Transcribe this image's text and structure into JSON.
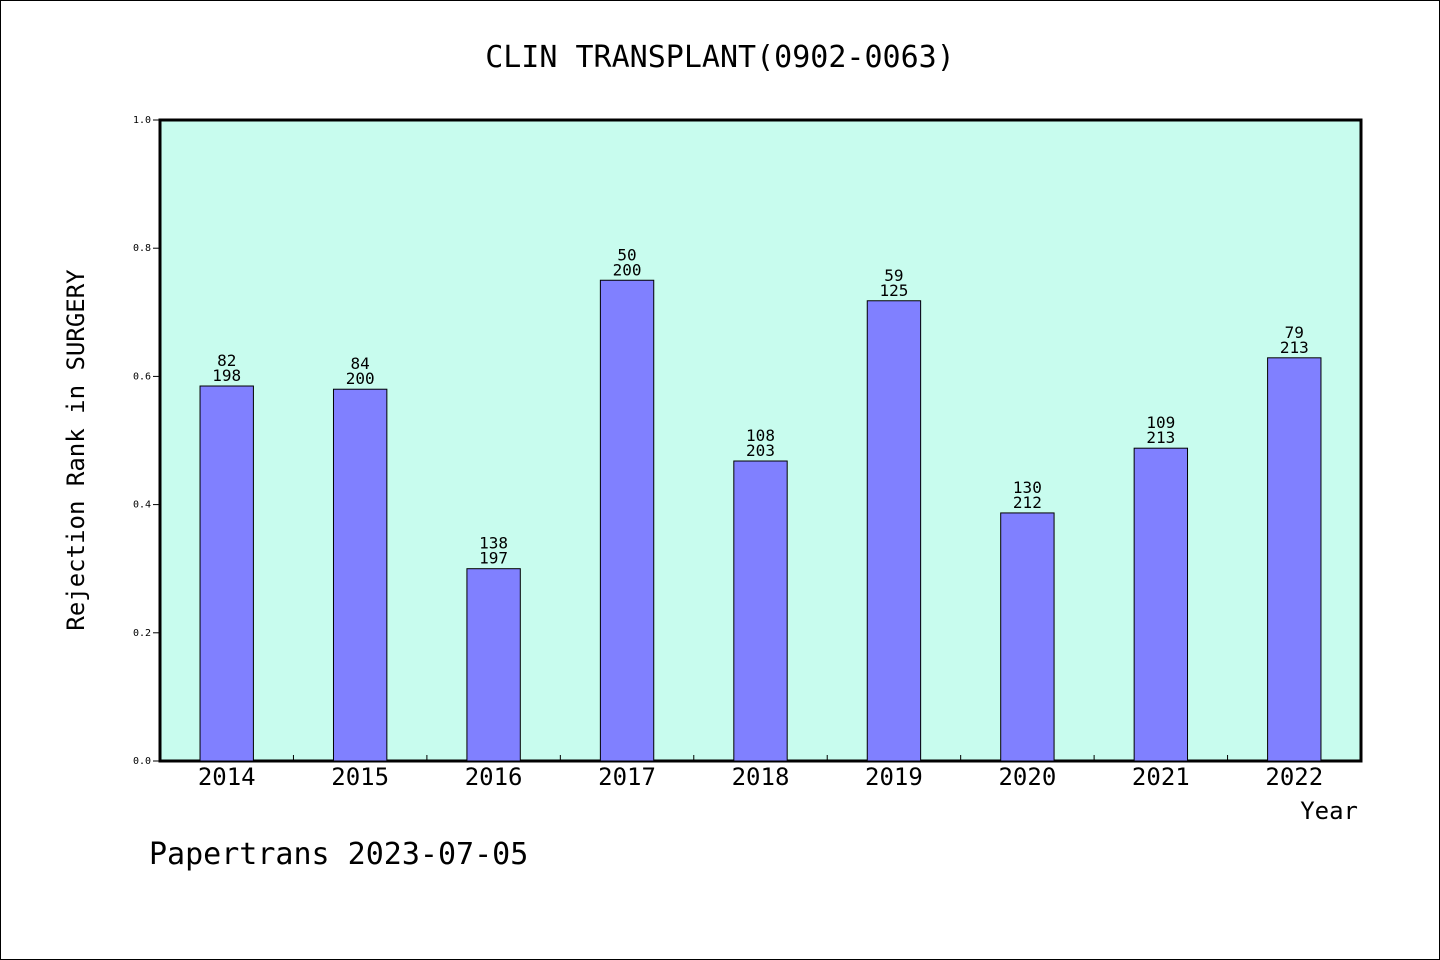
{
  "chart_data": {
    "type": "bar",
    "title": "CLIN TRANSPLANT(0902-0063)",
    "xlabel": "Year",
    "ylabel": "Rejection Rank in SURGERY",
    "categories": [
      "2014",
      "2015",
      "2016",
      "2017",
      "2018",
      "2019",
      "2020",
      "2021",
      "2022"
    ],
    "values": [
      0.585,
      0.58,
      0.3,
      0.75,
      0.468,
      0.718,
      0.387,
      0.488,
      0.629
    ],
    "labels_top": [
      "82",
      "84",
      "138",
      "50",
      "108",
      "59",
      "130",
      "109",
      "79"
    ],
    "labels_bottom": [
      "198",
      "200",
      "197",
      "200",
      "203",
      "125",
      "212",
      "213",
      "213"
    ],
    "ylim": [
      0,
      1.0
    ],
    "yticks": [
      "0.0",
      "0.2",
      "0.4",
      "0.6",
      "0.8",
      "1.0"
    ],
    "grid": false,
    "colors": {
      "plot_background": "#c8fcee",
      "bar_fill": "#8080ff",
      "bar_stroke": "#000000"
    }
  },
  "footer": "Papertrans 2023-07-05"
}
